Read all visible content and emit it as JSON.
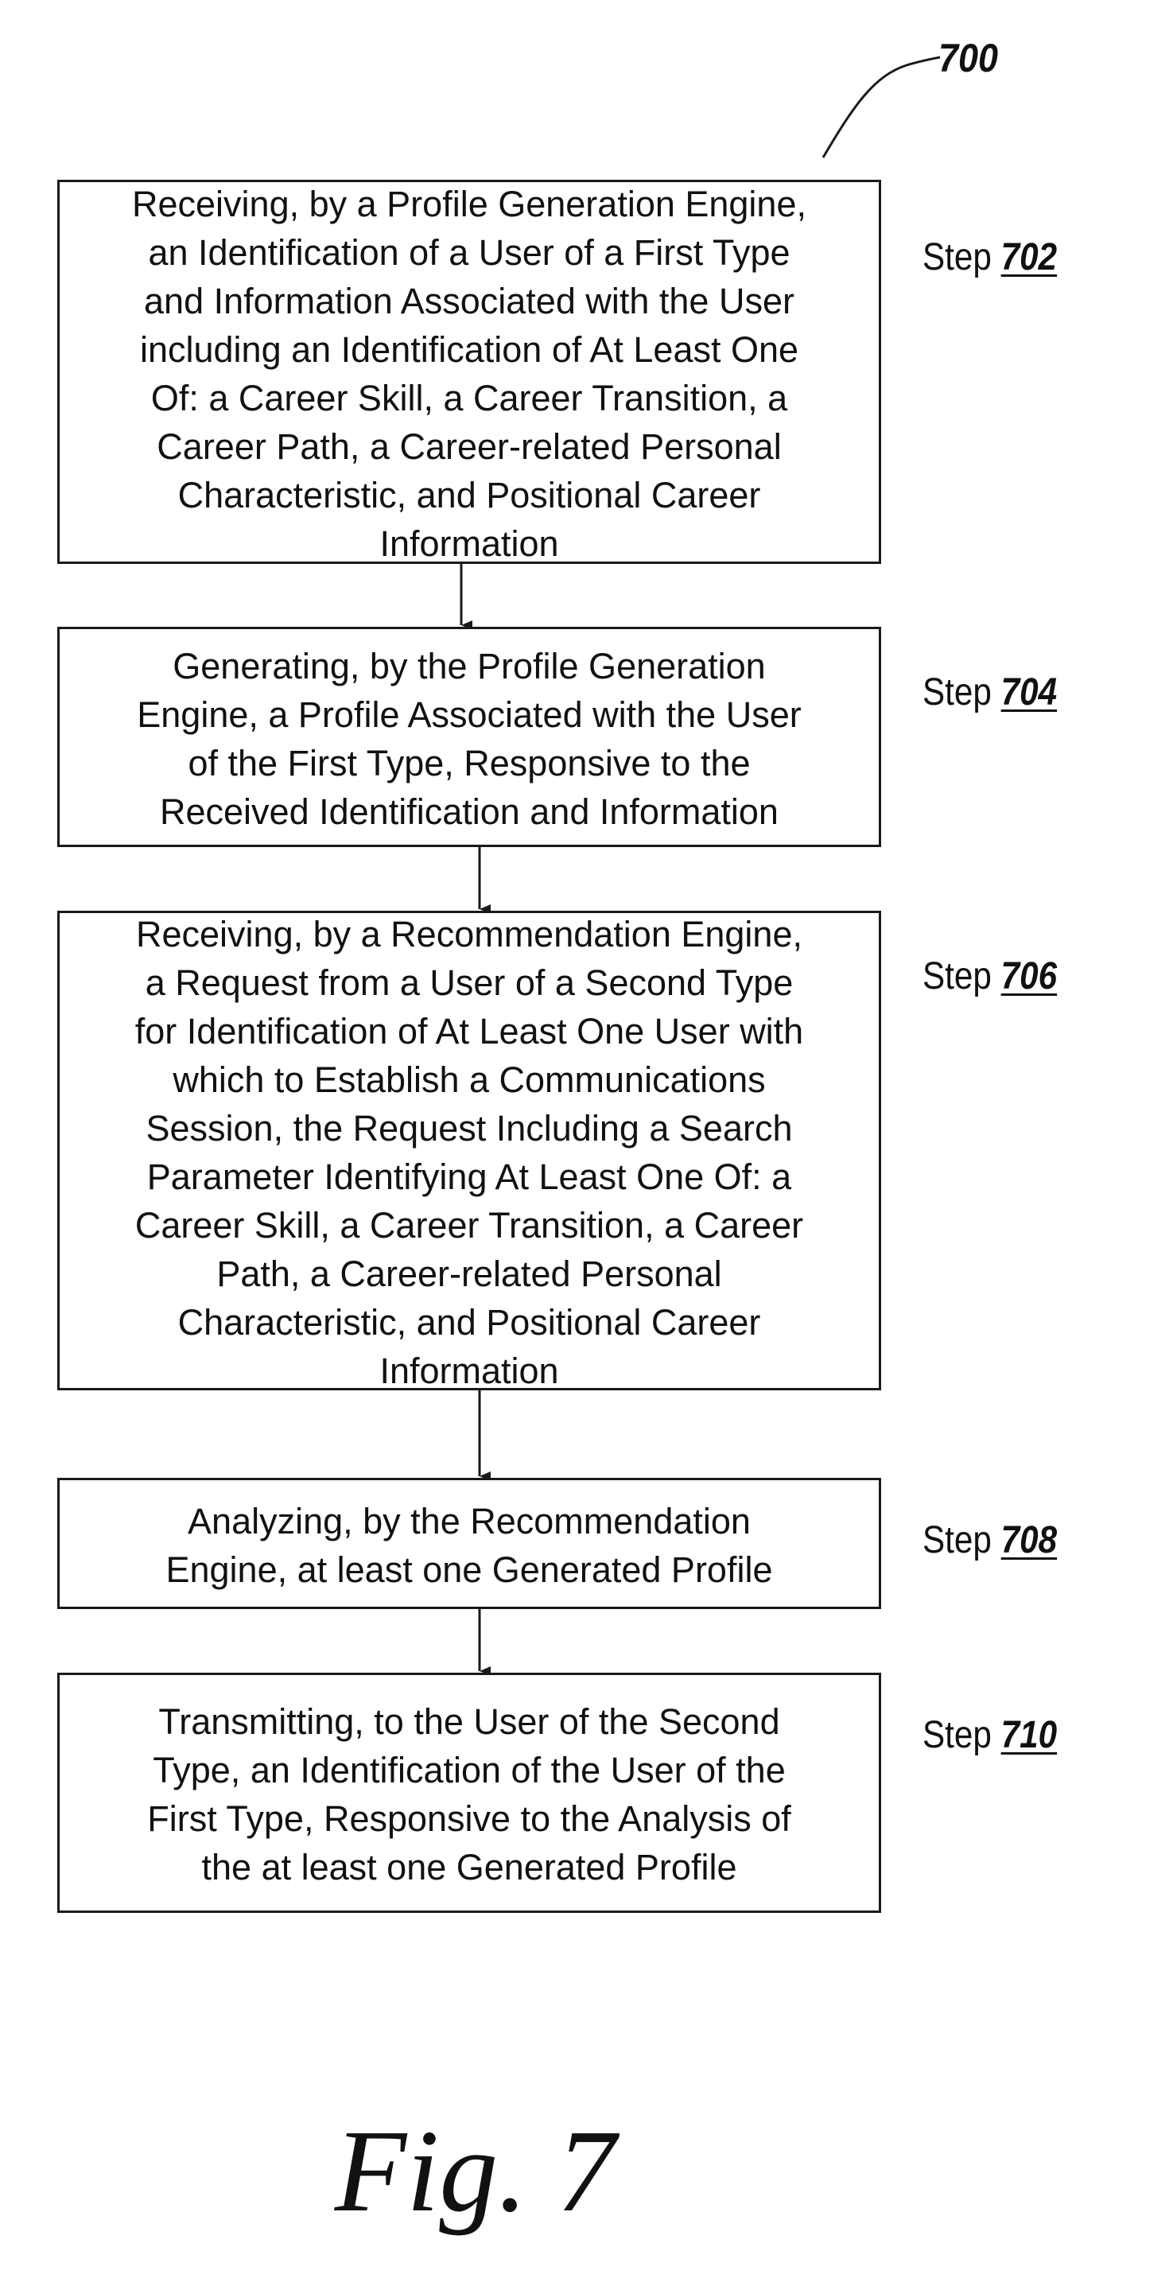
{
  "figure": {
    "reference_numeral": "700",
    "caption": "Fig. 7"
  },
  "steps": [
    {
      "text_lines": [
        "Receiving, by a Profile Generation Engine,",
        "an Identification of a User of a First Type",
        "and Information Associated with the User",
        "including an Identification of At Least One",
        "Of: a Career Skill, a Career Transition, a",
        "Career Path, a Career-related Personal",
        "Characteristic, and Positional Career",
        "Information"
      ],
      "label_prefix": "Step",
      "label_number": "702"
    },
    {
      "text_lines": [
        "Generating, by the Profile Generation",
        "Engine, a Profile Associated with the User",
        "of the First Type, Responsive to the",
        "Received Identification and Information"
      ],
      "label_prefix": "Step",
      "label_number": "704"
    },
    {
      "text_lines": [
        "Receiving, by a Recommendation Engine,",
        "a Request from a User of a Second Type",
        "for Identification of At Least One User with",
        "which to Establish a Communications",
        "Session, the Request Including a Search",
        "Parameter Identifying At Least One Of: a",
        "Career Skill, a Career Transition, a Career",
        "Path, a Career-related Personal",
        "Characteristic, and Positional Career",
        "Information"
      ],
      "label_prefix": "Step",
      "label_number": "706"
    },
    {
      "text_lines": [
        "Analyzing, by the Recommendation",
        "Engine, at least one Generated Profile"
      ],
      "label_prefix": "Step",
      "label_number": "708"
    },
    {
      "text_lines": [
        "Transmitting, to the User of the Second",
        "Type, an Identification of the User of the",
        "First Type, Responsive to the Analysis of",
        "the at least one Generated Profile"
      ],
      "label_prefix": "Step",
      "label_number": "710"
    }
  ]
}
